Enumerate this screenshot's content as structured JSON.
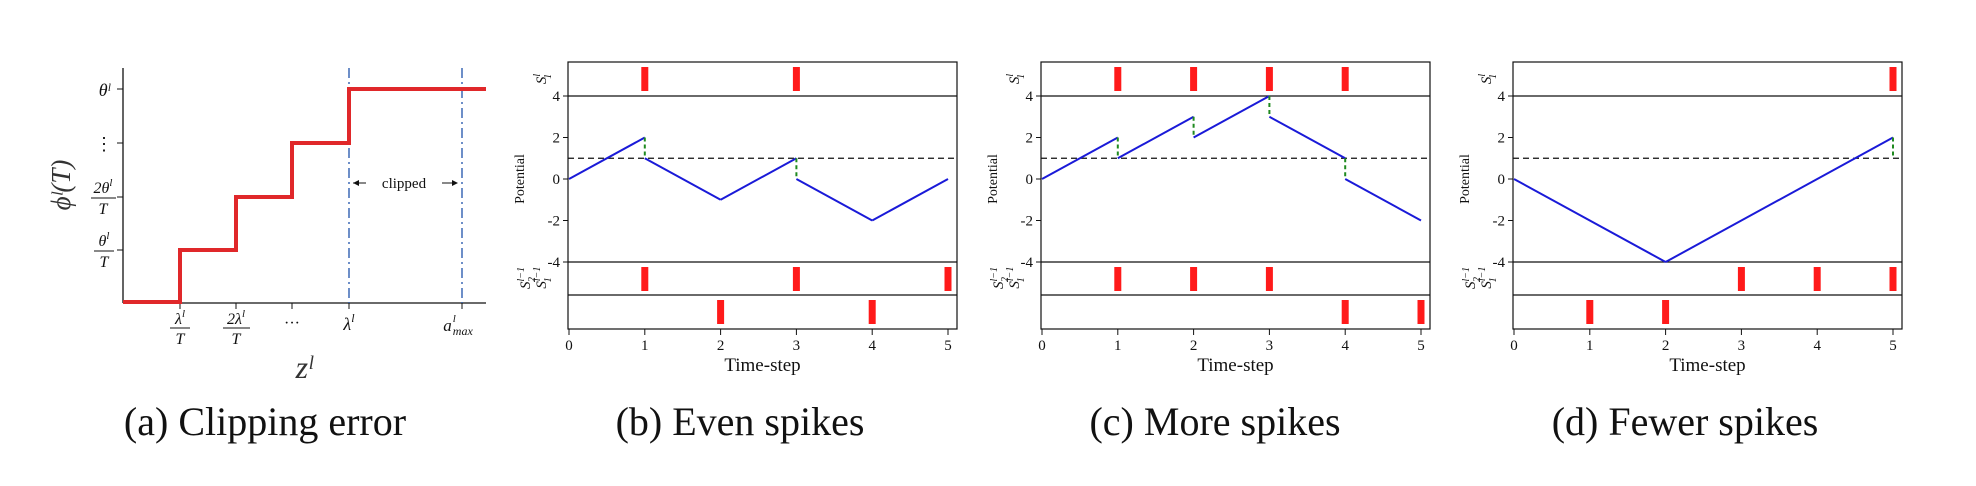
{
  "panel_a": {
    "caption_tag": "(a)",
    "caption_title": "Clipping error",
    "ylabel": "ϕˡ(T)",
    "xlabel": "zˡ",
    "clip_label": "clipped",
    "ytick_top": "θˡ",
    "ytick_dots": "⋮",
    "xtick_dots": "···",
    "colors": {
      "step": "#e0282a",
      "dashdot": "#2f5fb0"
    }
  },
  "panels": [
    {
      "id": "b",
      "caption_tag": "(b)",
      "caption_title": "Even spikes"
    },
    {
      "id": "c",
      "caption_tag": "(c)",
      "caption_title": "More spikes"
    },
    {
      "id": "d",
      "caption_tag": "(d)",
      "caption_title": "Fewer spikes"
    }
  ],
  "shared_labels": {
    "xlabel": "Time-step",
    "potential_label": "Potential",
    "out_spike_label": "Sˡ₁",
    "in1_label": "Sˡ⁻¹₁",
    "in2_label": "Sˡ⁻¹₂"
  },
  "chart_data": [
    {
      "type": "line",
      "panel": "a",
      "title": "Clipping error",
      "xlabel": "zˡ",
      "ylabel": "ϕˡ(T)",
      "x_ticks": [
        "λˡ/T",
        "2λˡ/T",
        "···",
        "λˡ",
        "aˡmax"
      ],
      "y_ticks": [
        "θˡ/T",
        "2θˡ/T",
        "⋮",
        "θˡ"
      ],
      "series": [
        {
          "values": [
            {
              "x": 0,
              "y": 0
            },
            {
              "x": 1,
              "y": 0
            },
            {
              "x": 1,
              "y": 1
            },
            {
              "x": 2,
              "y": 1
            },
            {
              "x": 2,
              "y": 2
            },
            {
              "x": 3,
              "y": 2
            },
            {
              "x": 3,
              "y": 3
            },
            {
              "x": 4,
              "y": 3
            },
            {
              "x": 4,
              "y": 4
            },
            {
              "x": 6.4,
              "y": 4
            }
          ]
        }
      ],
      "vlines": [
        {
          "x": 4,
          "style": "dash-dot"
        },
        {
          "x": 6,
          "style": "dash-dot"
        }
      ],
      "annotation": "clipped"
    },
    {
      "type": "line",
      "panel": "b",
      "title": "Even spikes",
      "xlabel": "Time-step",
      "ylabel": "Potential",
      "xlim": [
        0,
        5
      ],
      "ylim": [
        -4,
        4
      ],
      "x_ticks": [
        0,
        1,
        2,
        3,
        4,
        5
      ],
      "y_ticks": [
        -4,
        -2,
        0,
        2,
        4
      ],
      "threshold": 1,
      "potential": [
        [
          0,
          0
        ],
        [
          1,
          2
        ],
        [
          1,
          1
        ],
        [
          2,
          -1
        ],
        [
          3,
          1
        ],
        [
          3,
          0
        ],
        [
          4,
          -2
        ],
        [
          5,
          0
        ]
      ],
      "resets": [
        {
          "t": 1,
          "from": 2,
          "to": 1
        },
        {
          "t": 3,
          "from": 1,
          "to": 0
        }
      ],
      "spikes_out": [
        1,
        3
      ],
      "spikes_in1": [
        1,
        3,
        5
      ],
      "spikes_in2": [
        2,
        4
      ]
    },
    {
      "type": "line",
      "panel": "c",
      "title": "More spikes",
      "xlabel": "Time-step",
      "ylabel": "Potential",
      "xlim": [
        0,
        5
      ],
      "ylim": [
        -4,
        4
      ],
      "x_ticks": [
        0,
        1,
        2,
        3,
        4,
        5
      ],
      "y_ticks": [
        -4,
        -2,
        0,
        2,
        4
      ],
      "threshold": 1,
      "potential": [
        [
          0,
          0
        ],
        [
          1,
          2
        ],
        [
          1,
          1
        ],
        [
          2,
          3
        ],
        [
          2,
          2
        ],
        [
          3,
          4
        ],
        [
          3,
          3
        ],
        [
          4,
          1
        ],
        [
          4,
          0
        ],
        [
          5,
          -2
        ]
      ],
      "resets": [
        {
          "t": 1,
          "from": 2,
          "to": 1
        },
        {
          "t": 2,
          "from": 3,
          "to": 2
        },
        {
          "t": 3,
          "from": 4,
          "to": 3
        },
        {
          "t": 4,
          "from": 1,
          "to": 0
        }
      ],
      "spikes_out": [
        1,
        2,
        3,
        4
      ],
      "spikes_in1": [
        1,
        2,
        3
      ],
      "spikes_in2": [
        4,
        5
      ]
    },
    {
      "type": "line",
      "panel": "d",
      "title": "Fewer spikes",
      "xlabel": "Time-step",
      "ylabel": "Potential",
      "xlim": [
        0,
        5
      ],
      "ylim": [
        -4,
        4
      ],
      "x_ticks": [
        0,
        1,
        2,
        3,
        4,
        5
      ],
      "y_ticks": [
        -4,
        -2,
        0,
        2,
        4
      ],
      "threshold": 1,
      "potential": [
        [
          0,
          0
        ],
        [
          2,
          -4
        ],
        [
          5,
          2
        ]
      ],
      "resets": [
        {
          "t": 5,
          "from": 2,
          "to": 1
        }
      ],
      "spikes_out": [
        5
      ],
      "spikes_in1": [
        3,
        4,
        5
      ],
      "spikes_in2": [
        1,
        2
      ]
    }
  ]
}
